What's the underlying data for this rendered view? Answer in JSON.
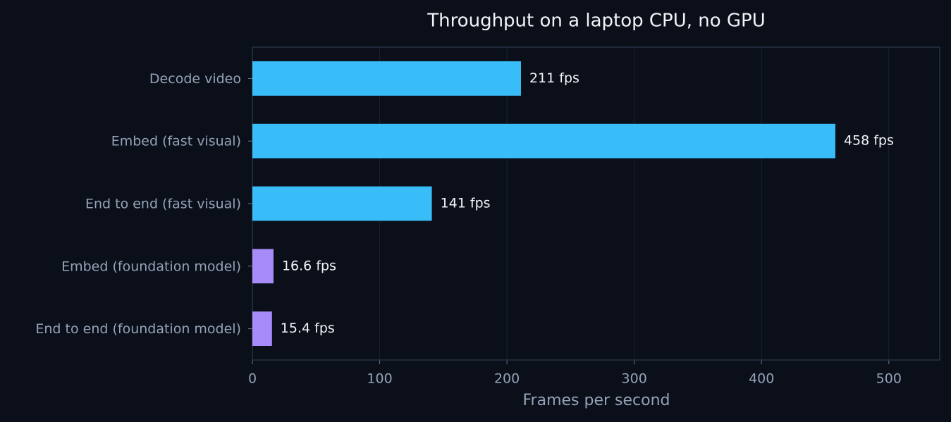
{
  "chart_data": {
    "type": "barh",
    "title": "Throughput on a laptop CPU, no GPU",
    "xlabel": "Frames per second",
    "categories": [
      "Decode video",
      "Embed (fast visual)",
      "End to end (fast visual)",
      "Embed (foundation model)",
      "End to end (foundation model)"
    ],
    "values": [
      211,
      458,
      141,
      16.6,
      15.4
    ],
    "value_labels": [
      "211 fps",
      "458 fps",
      "141 fps",
      "16.6 fps",
      "15.4 fps"
    ],
    "colors": [
      "#38bdf8",
      "#38bdf8",
      "#38bdf8",
      "#a78bfa",
      "#a78bfa"
    ],
    "xlim": [
      0,
      540
    ],
    "xticks": [
      0,
      100,
      200,
      300,
      400,
      500
    ],
    "grid": true
  }
}
